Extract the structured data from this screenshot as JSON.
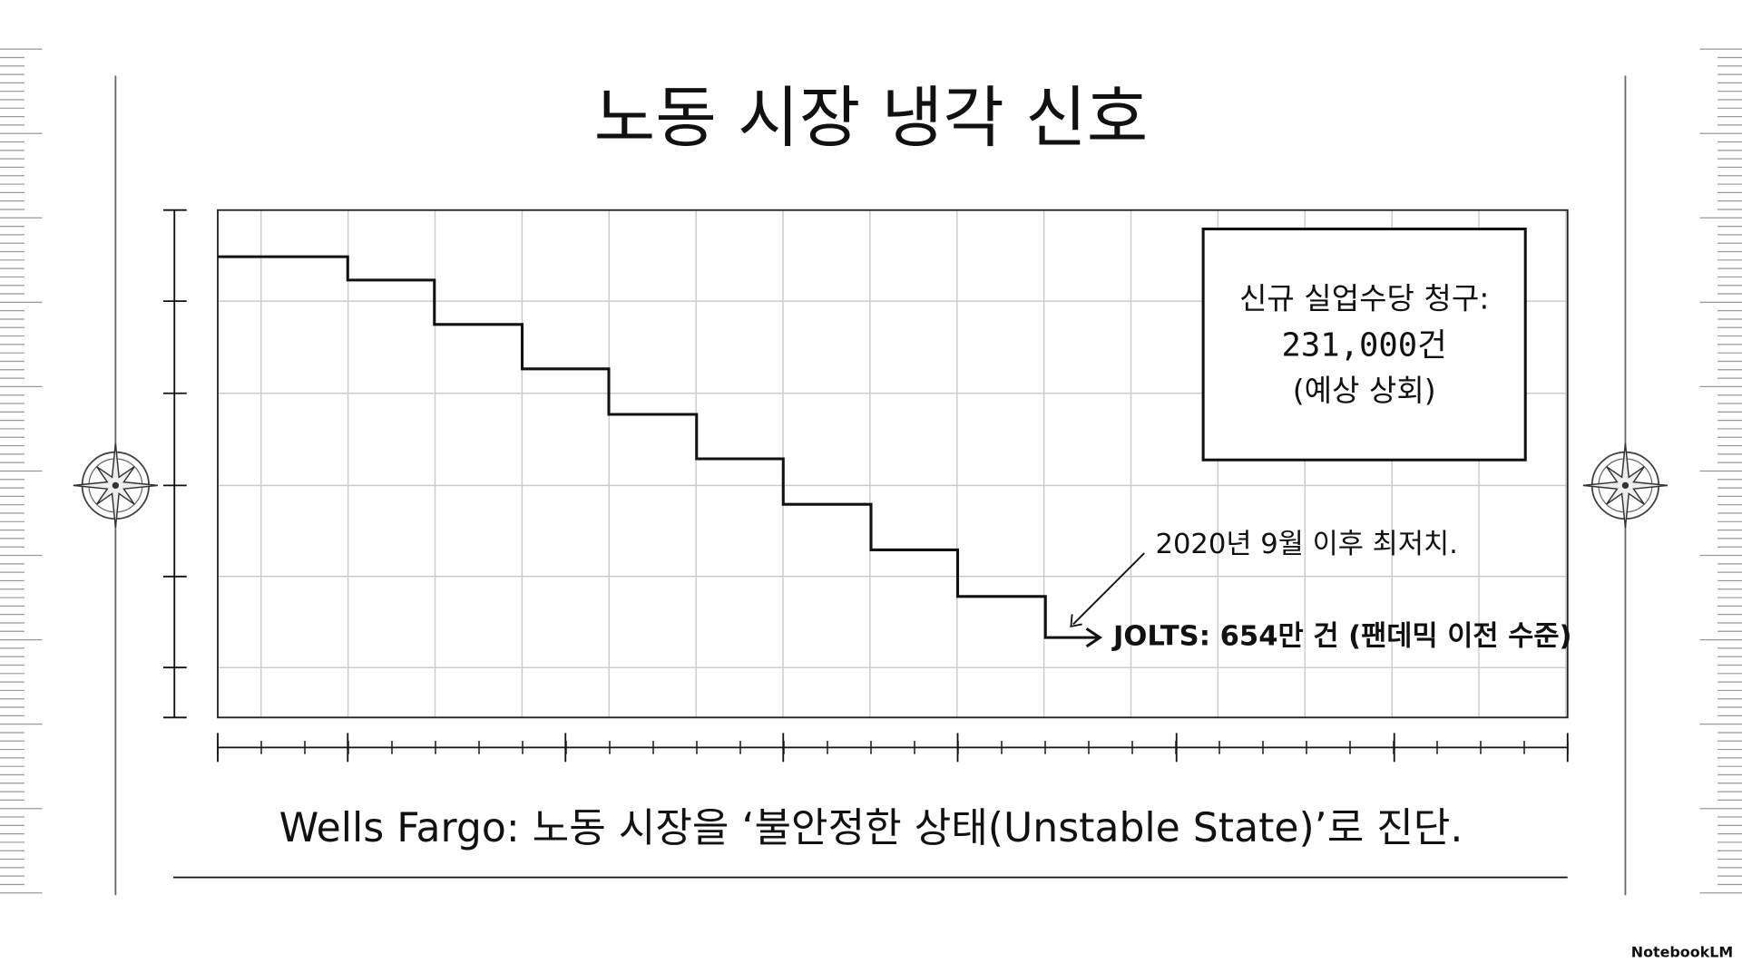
{
  "title": "노동 시장 냉각 신호",
  "box": {
    "line1": "신규 실업수당 청구:",
    "line2": "231,000건",
    "line3": "(예상 상회)"
  },
  "annotation": {
    "note": "2020년 9월 이후 최저치.",
    "label": "JOLTS: 654만 건 (팬데믹 이전 수준)"
  },
  "caption": "Wells Fargo: 노동 시장을 ‘불안정한 상태(Unstable State)’로 진단.",
  "watermark": "NotebookLM"
}
